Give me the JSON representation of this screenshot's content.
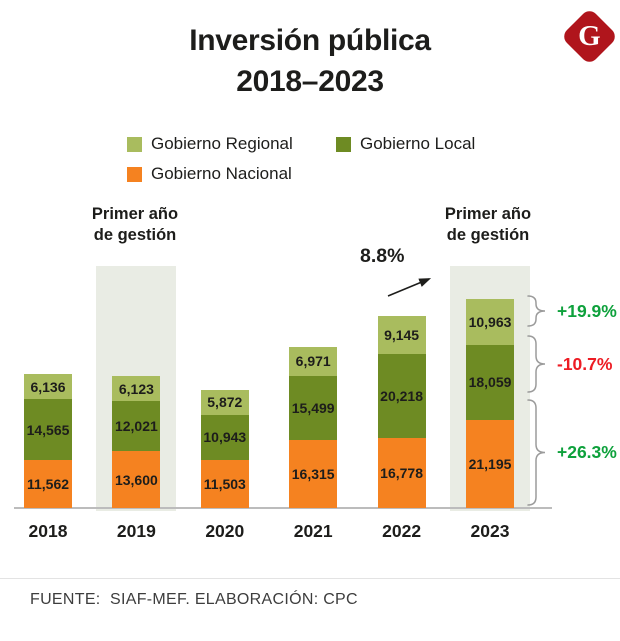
{
  "title": {
    "line1": "Inversión pública",
    "line2": "2018–2023"
  },
  "logo": {
    "letter": "G",
    "color": "#b0151c"
  },
  "legend": {
    "items": [
      {
        "label": "Gobierno Regional",
        "color": "#a9bc5e"
      },
      {
        "label": "Gobierno Local",
        "color": "#6e8b23"
      },
      {
        "label": "Gobierno Nacional",
        "color": "#f58220"
      }
    ]
  },
  "annotations": {
    "first_year_line1": "Primer año",
    "first_year_line2": "de gestión",
    "total_change_label": "8.8%"
  },
  "chart_data": {
    "type": "bar",
    "stacked": true,
    "title": "Inversión pública 2018–2023",
    "categories": [
      "2018",
      "2019",
      "2020",
      "2021",
      "2022",
      "2023"
    ],
    "series": [
      {
        "name": "Gobierno Nacional",
        "color": "#f58220",
        "values": [
          11562,
          13600,
          11503,
          16315,
          16778,
          21195
        ]
      },
      {
        "name": "Gobierno Local",
        "color": "#6e8b23",
        "values": [
          14565,
          12021,
          10943,
          15499,
          20218,
          18059
        ]
      },
      {
        "name": "Gobierno Regional",
        "color": "#a9bc5e",
        "values": [
          6136,
          6123,
          5872,
          6971,
          9145,
          10963
        ]
      }
    ],
    "highlighted_categories": [
      "2019",
      "2023"
    ],
    "highlight_annotation": "Primer año de gestión",
    "total_change_label": "8.8%",
    "change_labels": [
      {
        "series": "Gobierno Regional",
        "text": "+19.9%",
        "color": "#0ea13c"
      },
      {
        "series": "Gobierno Local",
        "text": "-10.7%",
        "color": "#ed1c24"
      },
      {
        "series": "Gobierno Nacional",
        "text": "+26.3%",
        "color": "#0ea13c"
      }
    ],
    "legend_position": "top",
    "grid": false
  },
  "footer": {
    "source": "FUENTE:  SIAF-MEF. ELABORACIÓN: CPC"
  }
}
